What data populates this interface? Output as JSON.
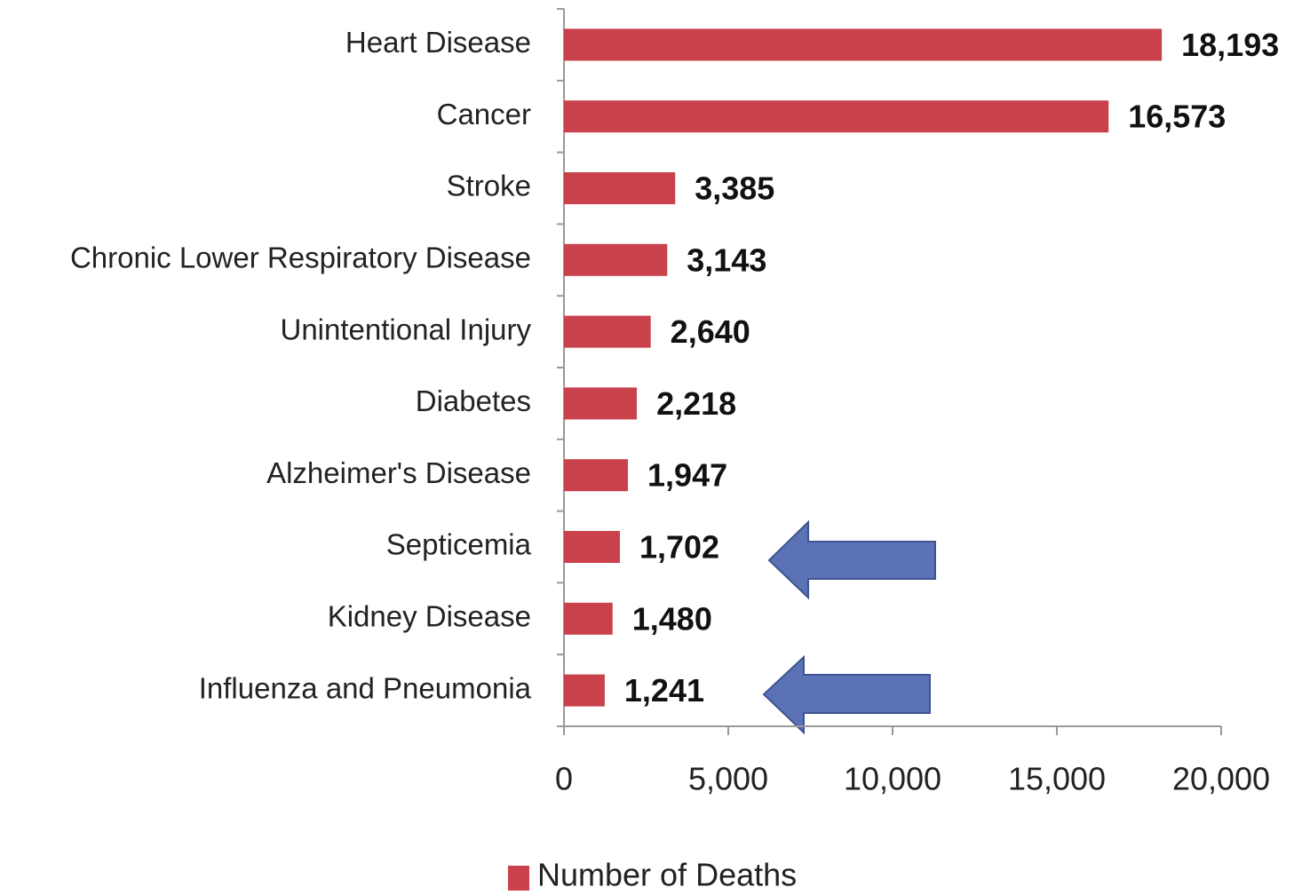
{
  "chart_data": {
    "type": "bar",
    "orientation": "horizontal",
    "categories": [
      "Heart Disease",
      "Cancer",
      "Stroke",
      "Chronic Lower Respiratory Disease",
      "Unintentional Injury",
      "Diabetes",
      "Alzheimer's Disease",
      "Septicemia",
      "Kidney Disease",
      "Influenza and Pneumonia"
    ],
    "series": [
      {
        "name": "Number of Deaths",
        "color": "#c8414b",
        "values": [
          18193,
          16573,
          3385,
          3143,
          2640,
          2218,
          1947,
          1702,
          1480,
          1241
        ],
        "value_labels": [
          "18,193",
          "16,573",
          "3,385",
          "3,143",
          "2,640",
          "2,218",
          "1,947",
          "1,702",
          "1,480",
          "1,241"
        ]
      }
    ],
    "xlim": [
      0,
      20000
    ],
    "xticks": [
      0,
      {
        "value": 5000,
        "label": "5,000"
      },
      {
        "value": 10000,
        "label": "10,000"
      },
      {
        "value": 15000,
        "label": "15,000"
      },
      {
        "value": 20000,
        "label": "20,000"
      }
    ],
    "legend": "bottom"
  }
}
